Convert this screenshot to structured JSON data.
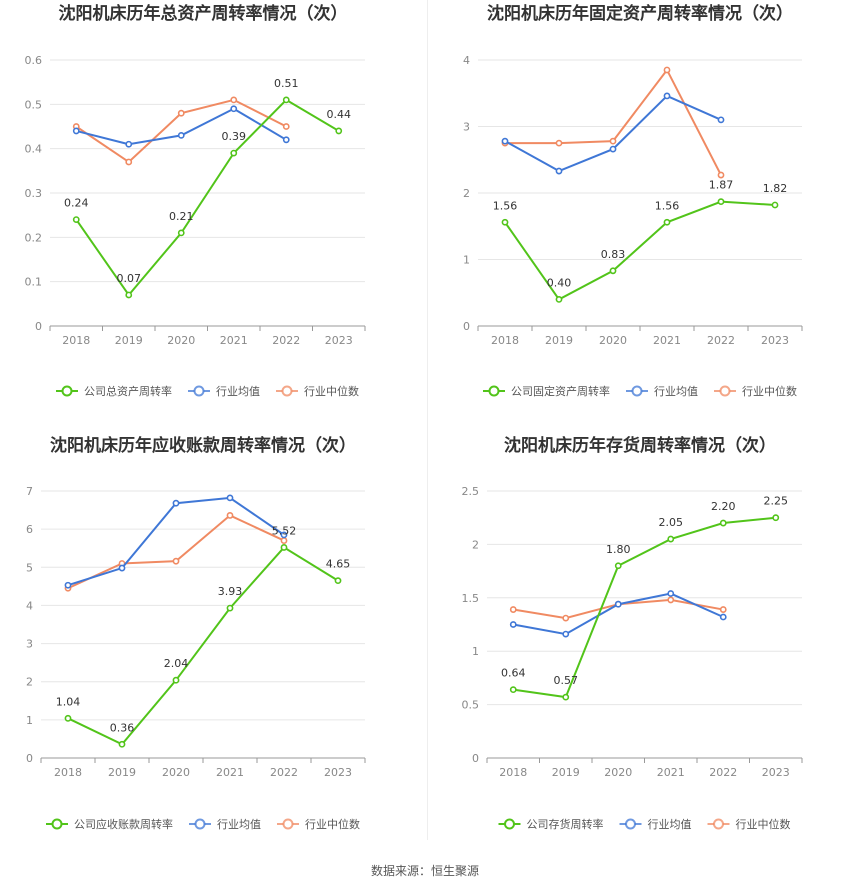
{
  "colors": {
    "company": "#52c41a",
    "average": "#3f77d6",
    "median": "#f08a62",
    "grid": "#e6e6e6",
    "axis": "#999999"
  },
  "legend_labels": {
    "average": "行业均值",
    "median": "行业中位数"
  },
  "source": "数据来源：恒生聚源",
  "chart_data": [
    {
      "type": "line",
      "title": "沈阳机床历年总资产周转率情况（次）",
      "categories": [
        "2018",
        "2019",
        "2020",
        "2021",
        "2022",
        "2023"
      ],
      "yticks": [
        "0",
        "0.1",
        "0.2",
        "0.3",
        "0.4",
        "0.5",
        "0.6"
      ],
      "ylim": [
        0,
        0.6
      ],
      "legend_position": "bottom",
      "series": [
        {
          "name": "公司总资产周转率",
          "key": "company",
          "values": [
            0.24,
            0.07,
            0.21,
            0.39,
            0.51,
            0.44
          ],
          "labels": [
            "0.24",
            "0.07",
            "0.21",
            "0.39",
            "0.51",
            "0.44"
          ]
        },
        {
          "name": "行业均值",
          "key": "average",
          "values": [
            0.44,
            0.41,
            0.43,
            0.49,
            0.42,
            null
          ]
        },
        {
          "name": "行业中位数",
          "key": "median",
          "values": [
            0.45,
            0.37,
            0.48,
            0.51,
            0.45,
            null
          ]
        }
      ]
    },
    {
      "type": "line",
      "title": "沈阳机床历年固定资产周转率情况（次）",
      "categories": [
        "2018",
        "2019",
        "2020",
        "2021",
        "2022",
        "2023"
      ],
      "yticks": [
        "0",
        "1",
        "2",
        "3",
        "4"
      ],
      "ylim": [
        0,
        4
      ],
      "legend_position": "bottom",
      "series": [
        {
          "name": "公司固定资产周转率",
          "key": "company",
          "values": [
            1.56,
            0.4,
            0.83,
            1.56,
            1.87,
            1.82
          ],
          "labels": [
            "1.56",
            "0.40",
            "0.83",
            "1.56",
            "1.87",
            "1.82"
          ]
        },
        {
          "name": "行业均值",
          "key": "average",
          "values": [
            2.78,
            2.33,
            2.66,
            3.46,
            3.1,
            null
          ]
        },
        {
          "name": "行业中位数",
          "key": "median",
          "values": [
            2.75,
            2.75,
            2.78,
            3.85,
            2.27,
            null
          ]
        }
      ]
    },
    {
      "type": "line",
      "title": "沈阳机床历年应收账款周转率情况（次）",
      "categories": [
        "2018",
        "2019",
        "2020",
        "2021",
        "2022",
        "2023"
      ],
      "yticks": [
        "0",
        "1",
        "2",
        "3",
        "4",
        "5",
        "6",
        "7"
      ],
      "ylim": [
        0,
        7
      ],
      "legend_position": "bottom",
      "series": [
        {
          "name": "公司应收账款周转率",
          "key": "company",
          "values": [
            1.04,
            0.36,
            2.04,
            3.93,
            5.52,
            4.65
          ],
          "labels": [
            "1.04",
            "0.36",
            "2.04",
            "3.93",
            "5.52",
            "4.65"
          ]
        },
        {
          "name": "行业均值",
          "key": "average",
          "values": [
            4.53,
            4.98,
            6.68,
            6.82,
            5.85,
            null
          ]
        },
        {
          "name": "行业中位数",
          "key": "median",
          "values": [
            4.45,
            5.1,
            5.16,
            6.36,
            5.7,
            null
          ]
        }
      ]
    },
    {
      "type": "line",
      "title": "沈阳机床历年存货周转率情况（次）",
      "categories": [
        "2018",
        "2019",
        "2020",
        "2021",
        "2022",
        "2023"
      ],
      "yticks": [
        "0",
        "0.5",
        "1",
        "1.5",
        "2",
        "2.5"
      ],
      "ylim": [
        0,
        2.5
      ],
      "legend_position": "bottom",
      "series": [
        {
          "name": "公司存货周转率",
          "key": "company",
          "values": [
            0.64,
            0.57,
            1.8,
            2.05,
            2.2,
            2.25
          ],
          "labels": [
            "0.64",
            "0.57",
            "1.80",
            "2.05",
            "2.20",
            "2.25"
          ]
        },
        {
          "name": "行业均值",
          "key": "average",
          "values": [
            1.25,
            1.16,
            1.44,
            1.54,
            1.32,
            null
          ]
        },
        {
          "name": "行业中位数",
          "key": "median",
          "values": [
            1.39,
            1.31,
            1.44,
            1.48,
            1.39,
            null
          ]
        }
      ]
    }
  ]
}
